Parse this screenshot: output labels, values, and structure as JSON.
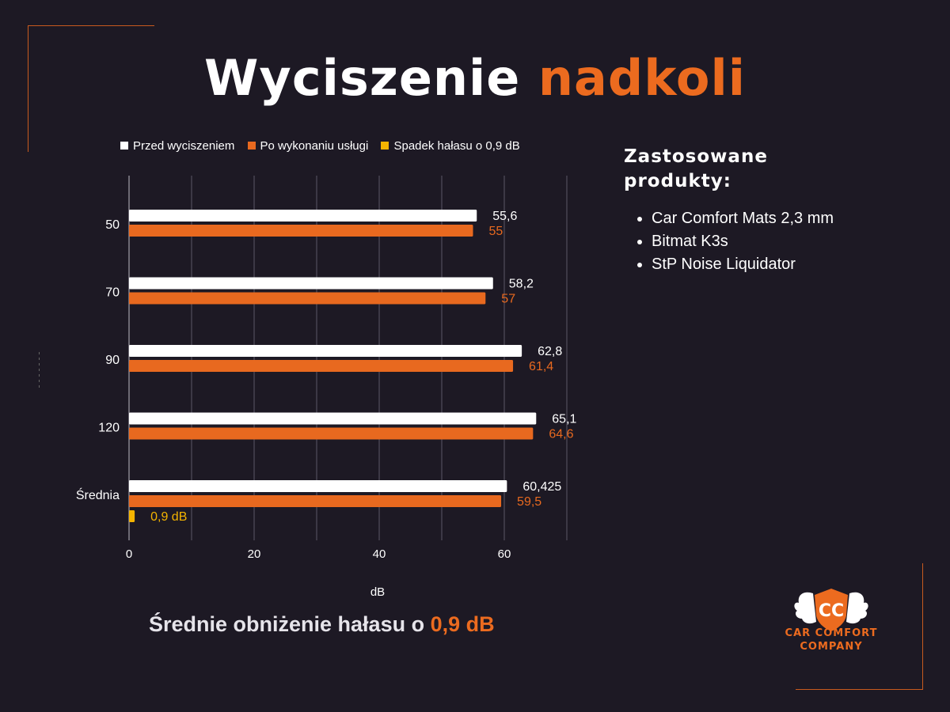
{
  "title": {
    "part1": "Wyciszenie",
    "part2": "nadkoli"
  },
  "colors": {
    "accent": "#ec6b1f",
    "before": "#ffffff",
    "after": "#e8691f",
    "drop": "#f4b400",
    "background": "#1d1924"
  },
  "legend": [
    {
      "label": "Przed wyciszeniem",
      "color": "#ffffff"
    },
    {
      "label": "Po wykonaniu usługi",
      "color": "#e8691f"
    },
    {
      "label": "Spadek hałasu o 0,9 dB",
      "color": "#f4b400"
    }
  ],
  "chart_data": {
    "type": "bar",
    "orientation": "horizontal",
    "categories": [
      "50",
      "70",
      "90",
      "120",
      "Średnia"
    ],
    "series": [
      {
        "name": "Przed wyciszeniem",
        "values": [
          55.6,
          58.2,
          62.8,
          65.1,
          60.425
        ],
        "labels": [
          "55,6",
          "58,2",
          "62,8",
          "65,1",
          "60,425"
        ]
      },
      {
        "name": "Po wykonaniu usługi",
        "values": [
          55,
          57,
          61.4,
          64.6,
          59.5
        ],
        "labels": [
          "55",
          "57",
          "61,4",
          "64,6",
          "59,5"
        ]
      },
      {
        "name": "Spadek hałasu o 0,9 dB",
        "values": [
          null,
          null,
          null,
          null,
          0.9
        ],
        "labels": [
          "",
          "",
          "",
          "",
          "0,9 dB"
        ]
      }
    ],
    "xlabel": "dB",
    "xlim": [
      0,
      70
    ],
    "xticks": [
      0,
      20,
      40,
      60
    ],
    "grid": true,
    "legend_position": "top"
  },
  "products": {
    "title": "Zastosowane produkty:",
    "items": [
      "Car Comfort Mats 2,3 mm",
      "Bitmat K3s",
      "StP Noise Liquidator"
    ]
  },
  "summary": {
    "text": "Średnie obniżenie hałasu o ",
    "value": "0,9 dB"
  },
  "logo": {
    "line1": "CAR COMFORT",
    "line2": "COMPANY",
    "monogram": "CC"
  }
}
